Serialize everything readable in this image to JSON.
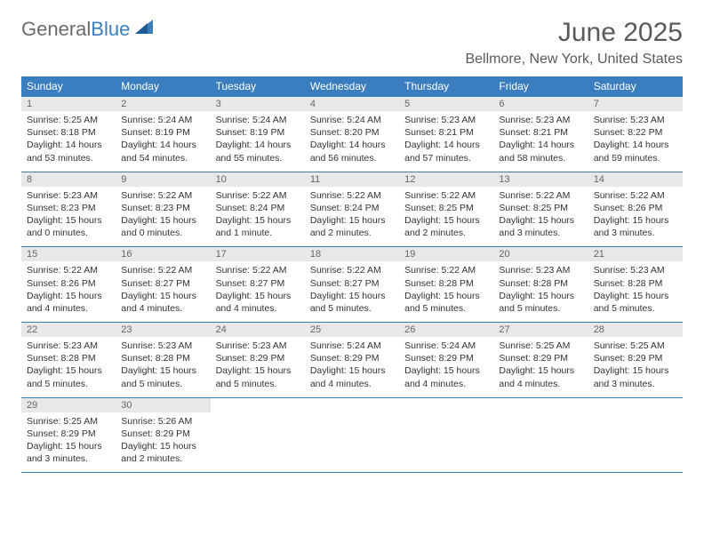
{
  "brand": {
    "part1": "General",
    "part2": "Blue"
  },
  "title": "June 2025",
  "location": "Bellmore, New York, United States",
  "colors": {
    "header_bg": "#3a7ebf",
    "header_fg": "#ffffff",
    "daynum_bg": "#e8e8e8",
    "daynum_fg": "#666666",
    "border": "#3a7ebf",
    "title_fg": "#5a5a5a",
    "body_fg": "#333333"
  },
  "day_names": [
    "Sunday",
    "Monday",
    "Tuesday",
    "Wednesday",
    "Thursday",
    "Friday",
    "Saturday"
  ],
  "weeks": [
    [
      {
        "n": "1",
        "sr": "Sunrise: 5:25 AM",
        "ss": "Sunset: 8:18 PM",
        "dl": "Daylight: 14 hours and 53 minutes."
      },
      {
        "n": "2",
        "sr": "Sunrise: 5:24 AM",
        "ss": "Sunset: 8:19 PM",
        "dl": "Daylight: 14 hours and 54 minutes."
      },
      {
        "n": "3",
        "sr": "Sunrise: 5:24 AM",
        "ss": "Sunset: 8:19 PM",
        "dl": "Daylight: 14 hours and 55 minutes."
      },
      {
        "n": "4",
        "sr": "Sunrise: 5:24 AM",
        "ss": "Sunset: 8:20 PM",
        "dl": "Daylight: 14 hours and 56 minutes."
      },
      {
        "n": "5",
        "sr": "Sunrise: 5:23 AM",
        "ss": "Sunset: 8:21 PM",
        "dl": "Daylight: 14 hours and 57 minutes."
      },
      {
        "n": "6",
        "sr": "Sunrise: 5:23 AM",
        "ss": "Sunset: 8:21 PM",
        "dl": "Daylight: 14 hours and 58 minutes."
      },
      {
        "n": "7",
        "sr": "Sunrise: 5:23 AM",
        "ss": "Sunset: 8:22 PM",
        "dl": "Daylight: 14 hours and 59 minutes."
      }
    ],
    [
      {
        "n": "8",
        "sr": "Sunrise: 5:23 AM",
        "ss": "Sunset: 8:23 PM",
        "dl": "Daylight: 15 hours and 0 minutes."
      },
      {
        "n": "9",
        "sr": "Sunrise: 5:22 AM",
        "ss": "Sunset: 8:23 PM",
        "dl": "Daylight: 15 hours and 0 minutes."
      },
      {
        "n": "10",
        "sr": "Sunrise: 5:22 AM",
        "ss": "Sunset: 8:24 PM",
        "dl": "Daylight: 15 hours and 1 minute."
      },
      {
        "n": "11",
        "sr": "Sunrise: 5:22 AM",
        "ss": "Sunset: 8:24 PM",
        "dl": "Daylight: 15 hours and 2 minutes."
      },
      {
        "n": "12",
        "sr": "Sunrise: 5:22 AM",
        "ss": "Sunset: 8:25 PM",
        "dl": "Daylight: 15 hours and 2 minutes."
      },
      {
        "n": "13",
        "sr": "Sunrise: 5:22 AM",
        "ss": "Sunset: 8:25 PM",
        "dl": "Daylight: 15 hours and 3 minutes."
      },
      {
        "n": "14",
        "sr": "Sunrise: 5:22 AM",
        "ss": "Sunset: 8:26 PM",
        "dl": "Daylight: 15 hours and 3 minutes."
      }
    ],
    [
      {
        "n": "15",
        "sr": "Sunrise: 5:22 AM",
        "ss": "Sunset: 8:26 PM",
        "dl": "Daylight: 15 hours and 4 minutes."
      },
      {
        "n": "16",
        "sr": "Sunrise: 5:22 AM",
        "ss": "Sunset: 8:27 PM",
        "dl": "Daylight: 15 hours and 4 minutes."
      },
      {
        "n": "17",
        "sr": "Sunrise: 5:22 AM",
        "ss": "Sunset: 8:27 PM",
        "dl": "Daylight: 15 hours and 4 minutes."
      },
      {
        "n": "18",
        "sr": "Sunrise: 5:22 AM",
        "ss": "Sunset: 8:27 PM",
        "dl": "Daylight: 15 hours and 5 minutes."
      },
      {
        "n": "19",
        "sr": "Sunrise: 5:22 AM",
        "ss": "Sunset: 8:28 PM",
        "dl": "Daylight: 15 hours and 5 minutes."
      },
      {
        "n": "20",
        "sr": "Sunrise: 5:23 AM",
        "ss": "Sunset: 8:28 PM",
        "dl": "Daylight: 15 hours and 5 minutes."
      },
      {
        "n": "21",
        "sr": "Sunrise: 5:23 AM",
        "ss": "Sunset: 8:28 PM",
        "dl": "Daylight: 15 hours and 5 minutes."
      }
    ],
    [
      {
        "n": "22",
        "sr": "Sunrise: 5:23 AM",
        "ss": "Sunset: 8:28 PM",
        "dl": "Daylight: 15 hours and 5 minutes."
      },
      {
        "n": "23",
        "sr": "Sunrise: 5:23 AM",
        "ss": "Sunset: 8:28 PM",
        "dl": "Daylight: 15 hours and 5 minutes."
      },
      {
        "n": "24",
        "sr": "Sunrise: 5:23 AM",
        "ss": "Sunset: 8:29 PM",
        "dl": "Daylight: 15 hours and 5 minutes."
      },
      {
        "n": "25",
        "sr": "Sunrise: 5:24 AM",
        "ss": "Sunset: 8:29 PM",
        "dl": "Daylight: 15 hours and 4 minutes."
      },
      {
        "n": "26",
        "sr": "Sunrise: 5:24 AM",
        "ss": "Sunset: 8:29 PM",
        "dl": "Daylight: 15 hours and 4 minutes."
      },
      {
        "n": "27",
        "sr": "Sunrise: 5:25 AM",
        "ss": "Sunset: 8:29 PM",
        "dl": "Daylight: 15 hours and 4 minutes."
      },
      {
        "n": "28",
        "sr": "Sunrise: 5:25 AM",
        "ss": "Sunset: 8:29 PM",
        "dl": "Daylight: 15 hours and 3 minutes."
      }
    ],
    [
      {
        "n": "29",
        "sr": "Sunrise: 5:25 AM",
        "ss": "Sunset: 8:29 PM",
        "dl": "Daylight: 15 hours and 3 minutes."
      },
      {
        "n": "30",
        "sr": "Sunrise: 5:26 AM",
        "ss": "Sunset: 8:29 PM",
        "dl": "Daylight: 15 hours and 2 minutes."
      },
      {
        "empty": true
      },
      {
        "empty": true
      },
      {
        "empty": true
      },
      {
        "empty": true
      },
      {
        "empty": true
      }
    ]
  ]
}
